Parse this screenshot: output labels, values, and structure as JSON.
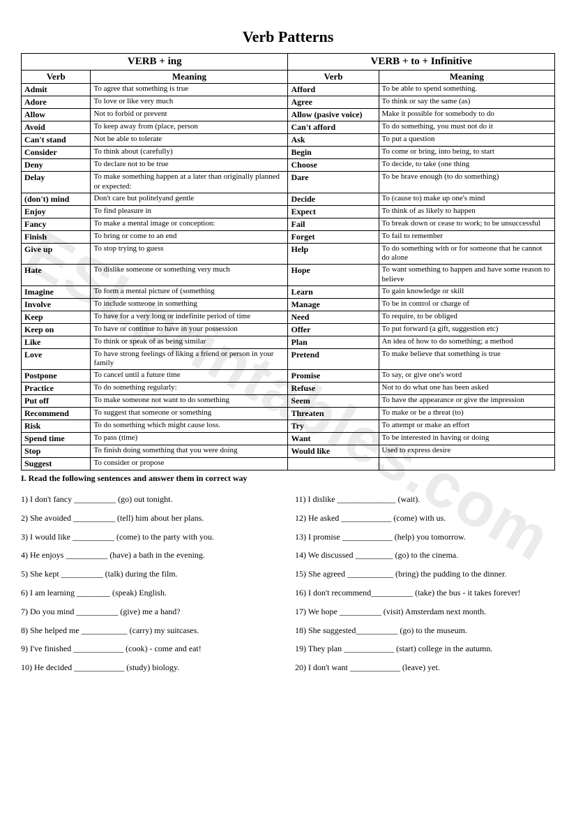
{
  "title": "Verb Patterns",
  "watermark": "ESLprintables.com",
  "table": {
    "group_left": "VERB + ing",
    "group_right": "VERB + to + Infinitive",
    "col_verb": "Verb",
    "col_meaning": "Meaning",
    "rows": [
      {
        "lv": "Admit",
        "lm": "To agree that something is true",
        "rv": "Afford",
        "rm": "To be able to spend something."
      },
      {
        "lv": "Adore",
        "lm": "To love or like very much",
        "rv": "Agree",
        "rm": "To think or say the same (as)"
      },
      {
        "lv": "Allow",
        "lm": "Not to forbid or prevent",
        "rv": "Allow (pasive voice)",
        "rm": "Make it possible for somebody to do"
      },
      {
        "lv": "Avoid",
        "lm": "To keep away from (place, person",
        "rv": "Can't afford",
        "rm": "To do something, you must not do it"
      },
      {
        "lv": "Can't stand",
        "lm": "Not be able to tolerate",
        "rv": "Ask",
        "rm": "To put a question"
      },
      {
        "lv": "Consider",
        "lm": "To think about (carefully)",
        "rv": "Begin",
        "rm": "To come or bring, into being, to start"
      },
      {
        "lv": "Deny",
        "lm": "To declare not to be true",
        "rv": "Choose",
        "rm": "To decide, to take (one thing"
      },
      {
        "lv": "Delay",
        "lm": "To make something happen at a later than originally planned or expected:",
        "rv": "Dare",
        "rm": "To be brave enough (to do something)"
      },
      {
        "lv": "(don't) mind",
        "lm": "Don't care  but politelyand gentle",
        "rv": "Decide",
        "rm": " To (cause to) make up one's mind"
      },
      {
        "lv": "Enjoy",
        "lm": "To find pleasure in",
        "rv": "Expect",
        "rm": "To think of as likely to happen"
      },
      {
        "lv": "Fancy",
        "lm": "To make a mental image or conception:",
        "rv": "Fail",
        "rm": "To break down or cease to work; to be unsuccessful"
      },
      {
        "lv": "Finish",
        "lm": "To bring or come to an end",
        "rv": "Forget",
        "rm": "To fail to remember"
      },
      {
        "lv": "Give up",
        "lm": "To stop trying to guess",
        "rv": "Help",
        "rm": "To do something with or for someone that he cannot do alone"
      },
      {
        "lv": "Hate",
        "lm": "To dislike someone or something very much",
        "rv": "Hope",
        "rm": "To want something to happen and have some reason to believe"
      },
      {
        "lv": "Imagine",
        "lm": " To form a mental picture of (something",
        "rv": "Learn",
        "rm": "To gain knowledge or skill"
      },
      {
        "lv": "Involve",
        "lm": "To include someone in something",
        "rv": "Manage",
        "rm": "To be in control or charge of"
      },
      {
        "lv": "Keep",
        "lm": "To have for a very long or indefinite period of time",
        "rv": "Need",
        "rm": "To require, to be obliged"
      },
      {
        "lv": "Keep on",
        "lm": "To have or continue to have in your possession",
        "rv": "Offer",
        "rm": "To put forward (a gift, suggestion etc)"
      },
      {
        "lv": "Like",
        "lm": "To think or speak of as being similar",
        "rv": "Plan",
        "rm": "An idea of how to do something; a method"
      },
      {
        "lv": "Love",
        "lm": " To have strong feelings of liking a friend or person in your family",
        "rv": "Pretend",
        "rm": "To make believe that something is true"
      },
      {
        "lv": "Postpone",
        "lm": "To cancel until a future time",
        "rv": "Promise",
        "rm": "To say, or give one's word"
      },
      {
        "lv": "Practice",
        "lm": " To do something regularly:",
        "rv": "Refuse",
        "rm": "Not to do what one has been asked"
      },
      {
        "lv": "Put off",
        "lm": "To make someone not want to do something",
        "rv": "Seem",
        "rm": "To have the appearance or give the impression"
      },
      {
        "lv": "Recommend",
        "lm": "To suggest that someone or something",
        "rv": "Threaten",
        "rm": "To make or be a threat (to)"
      },
      {
        "lv": "Risk",
        "lm": "To do something which might cause loss.",
        "rv": "Try",
        "rm": "To attempt or make an effort"
      },
      {
        "lv": "Spend time",
        "lm": " To pass (time)",
        "rv": "Want",
        "rm": "To be interested in having or doing"
      },
      {
        "lv": "Stop",
        "lm": "To finish doing something that you were doing",
        "rv": "Would like",
        "rm": "Used to express desire"
      },
      {
        "lv": "Suggest",
        "lm": "To consider or propose",
        "rv": "",
        "rm": ""
      }
    ]
  },
  "instruction": "I. Read the following sentences and answer them in correct way",
  "exercises_left": [
    "1) I don't fancy __________ (go) out tonight.",
    "2) She avoided __________ (tell) him about her plans.",
    "3) I would like __________ (come) to the party with you.",
    "4) He enjoys __________ (have) a bath in the evening.",
    "5) She kept __________ (talk) during the film.",
    "6) I am learning ________ (speak) English.",
    "7) Do you mind __________ (give) me a hand?",
    "8) She helped me ___________ (carry) my suitcases.",
    "9) I've finished ____________ (cook) - come and eat!",
    "10) He decided ____________ (study) biology."
  ],
  "exercises_right": [
    "11) I dislike ______________ (wait).",
    "12) He asked ____________ (come) with us.",
    "13) I promise ____________ (help) you tomorrow.",
    "14) We discussed _________ (go) to the cinema.",
    "15) She agreed ___________ (bring) the pudding to the dinner.",
    "16) I don't recommend__________ (take) the bus - it takes forever!",
    "17) We hope __________ (visit) Amsterdam next month.",
    "18) She suggested__________ (go) to the museum.",
    "19) They plan ____________ (start) college in the autumn.",
    "20) I don't want ____________ (leave) yet."
  ]
}
